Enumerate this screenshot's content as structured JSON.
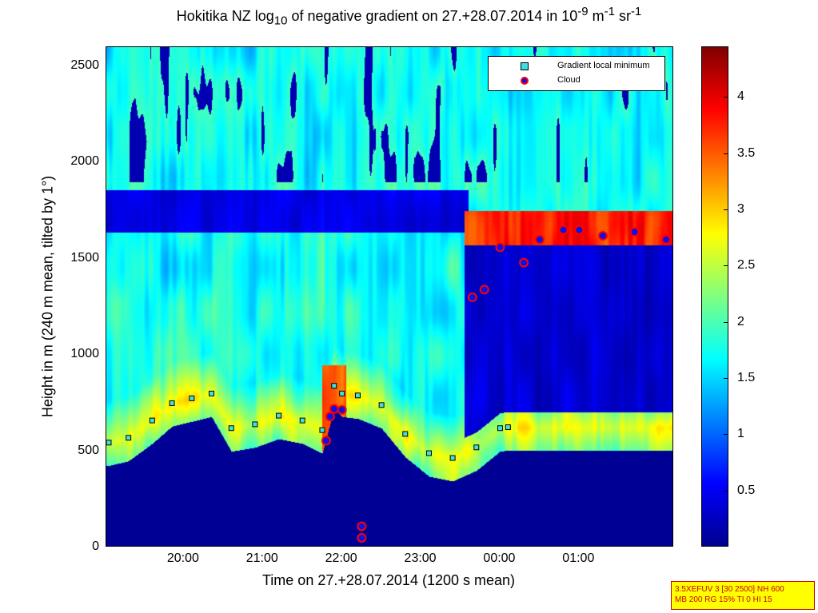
{
  "chart_data": {
    "type": "heatmap",
    "title": {
      "prefix": "Hokitika NZ log",
      "sub": "10",
      "middle": " of negative gradient on 27.+28.07.2014 in 10",
      "sup1": "-9",
      "unit1": " m",
      "sup2": "-1",
      "unit2": " sr",
      "sup3": "-1"
    },
    "xlabel": "Time on 27.+28.07.2014 (1200 s mean)",
    "ylabel": "Height in m (240 m mean, tilted by 1°)",
    "x_ticks": [
      "20:00",
      "21:00",
      "22:00",
      "23:00",
      "00:00",
      "01:00"
    ],
    "x_tick_hours": [
      20,
      21,
      22,
      23,
      24,
      25
    ],
    "xlim_hours": [
      19.02,
      26.2
    ],
    "y_ticks": [
      "0",
      "500",
      "1000",
      "1500",
      "2000",
      "2500"
    ],
    "y_tick_values": [
      0,
      500,
      1000,
      1500,
      2000,
      2500
    ],
    "ylim": [
      0,
      2600
    ],
    "colorbar": {
      "ticks": [
        "0.5",
        "1",
        "1.5",
        "2",
        "2.5",
        "3",
        "3.5",
        "4"
      ],
      "tick_values": [
        0.5,
        1,
        1.5,
        2,
        2.5,
        3,
        3.5,
        4
      ],
      "range": [
        0,
        4.45
      ],
      "colormap": "jet"
    },
    "legend": {
      "placement": "top-right",
      "entries": [
        {
          "label": "Gradient local minimum",
          "marker": "square",
          "color": "#40e0e0"
        },
        {
          "label": "Cloud",
          "marker": "circle",
          "color": "#1010e0",
          "edge": "#ff0000"
        }
      ]
    },
    "gradient_minimum_track": {
      "x_hours": [
        19.05,
        19.3,
        19.6,
        19.85,
        20.1,
        20.35,
        20.6,
        20.9,
        21.2,
        21.5,
        21.75,
        21.9,
        22.0,
        22.2,
        22.5,
        22.8,
        23.1,
        23.4,
        23.7,
        24.0,
        24.1
      ],
      "y_m": [
        545,
        570,
        660,
        750,
        775,
        800,
        620,
        640,
        685,
        660,
        610,
        840,
        800,
        790,
        740,
        590,
        490,
        465,
        520,
        620,
        625
      ]
    },
    "cloud_points": {
      "x_hours": [
        21.8,
        21.85,
        21.9,
        22.0,
        22.25,
        22.25,
        23.65,
        23.8,
        24.0,
        24.3,
        24.5,
        24.8,
        25.0,
        25.3,
        25.7,
        26.1
      ],
      "y_m": [
        555,
        680,
        720,
        715,
        110,
        50,
        1300,
        1340,
        1560,
        1480,
        1600,
        1650,
        1650,
        1620,
        1640,
        1600
      ]
    }
  },
  "settings_box": {
    "line1": "3.5XEFUV 3 [30 2500] NH 600",
    "line2": "MB 200 RG 15% TI 0 HI 15"
  }
}
